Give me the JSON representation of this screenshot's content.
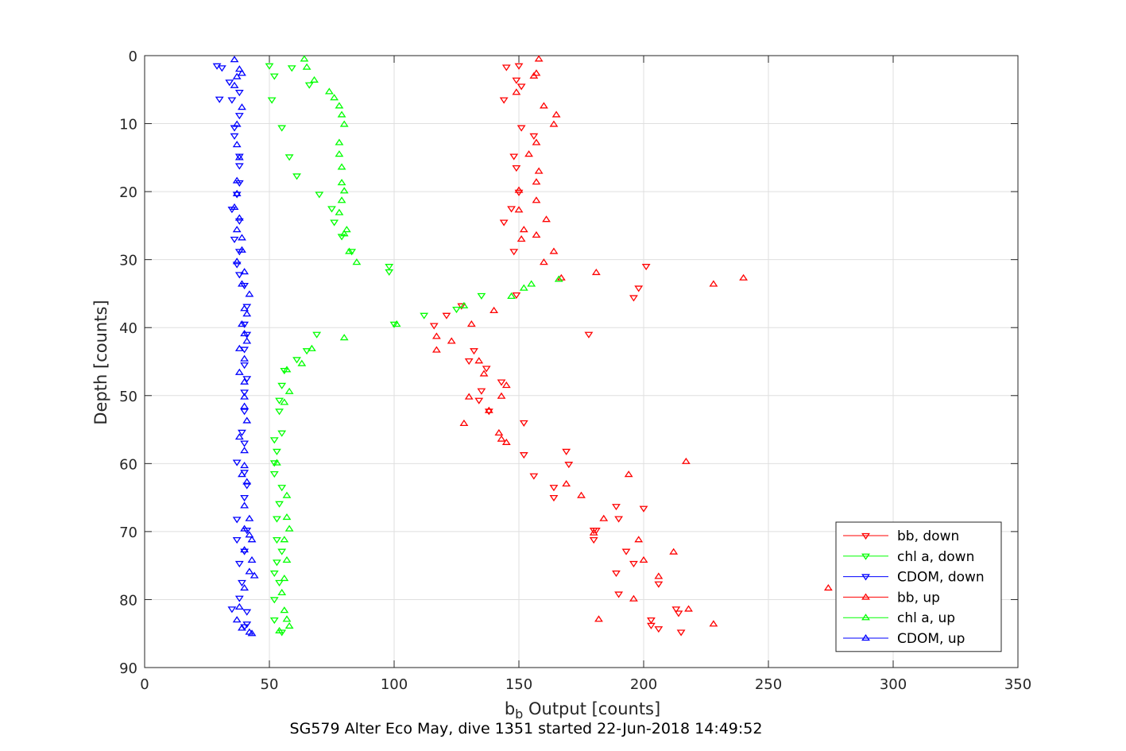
{
  "chart_data": {
    "type": "scatter",
    "title": "SG579 Alter Eco May, dive 1351 started 22-Jun-2018 14:49:52",
    "xlabel": "b",
    "xlabel_sub": "b",
    "xlabel_rest": " Output [counts]",
    "ylabel": "Depth [counts]",
    "xlim": [
      0,
      350
    ],
    "ylim": [
      0,
      90
    ],
    "y_reversed": true,
    "grid": true,
    "legend_position": "bottom-right",
    "xticks": [
      0,
      50,
      100,
      150,
      200,
      250,
      300,
      350
    ],
    "yticks": [
      0,
      10,
      20,
      30,
      40,
      50,
      60,
      70,
      80,
      90
    ],
    "series": [
      {
        "name": "bb, down",
        "color": "#ff0000",
        "marker": "triangle-down",
        "points": [
          [
            145,
            1.7
          ],
          [
            150,
            1.5
          ],
          [
            149,
            3.6
          ],
          [
            151,
            4.5
          ],
          [
            144,
            6.5
          ],
          [
            151,
            10.6
          ],
          [
            156,
            11.8
          ],
          [
            148,
            14.8
          ],
          [
            149,
            16.5
          ],
          [
            150,
            20.1
          ],
          [
            147,
            22.5
          ],
          [
            144,
            24.5
          ],
          [
            148,
            28.8
          ],
          [
            201,
            31.0
          ],
          [
            198,
            34.2
          ],
          [
            196,
            35.6
          ],
          [
            149,
            35.2
          ],
          [
            127,
            36.8
          ],
          [
            121,
            38.2
          ],
          [
            116,
            39.7
          ],
          [
            178,
            41.0
          ],
          [
            132,
            43.4
          ],
          [
            130,
            44.9
          ],
          [
            137,
            46.0
          ],
          [
            143,
            48.0
          ],
          [
            135,
            49.3
          ],
          [
            134,
            50.7
          ],
          [
            138,
            52.3
          ],
          [
            152,
            54.0
          ],
          [
            152,
            58.7
          ],
          [
            169,
            58.2
          ],
          [
            170,
            60.1
          ],
          [
            156,
            61.8
          ],
          [
            164,
            63.5
          ],
          [
            164,
            65.0
          ],
          [
            189,
            66.3
          ],
          [
            200,
            66.6
          ],
          [
            190,
            68.1
          ],
          [
            180,
            69.8
          ],
          [
            181,
            69.8
          ],
          [
            180,
            71.2
          ],
          [
            193,
            72.9
          ],
          [
            196,
            74.7
          ],
          [
            189,
            76.1
          ],
          [
            206,
            77.7
          ],
          [
            190,
            79.2
          ],
          [
            213,
            81.4
          ],
          [
            203,
            83.0
          ],
          [
            214,
            82.0
          ],
          [
            203,
            83.8
          ],
          [
            206,
            84.3
          ],
          [
            215,
            84.8
          ]
        ]
      },
      {
        "name": "chl a, down",
        "color": "#00ff00",
        "marker": "triangle-down",
        "points": [
          [
            50,
            1.5
          ],
          [
            59,
            1.8
          ],
          [
            52,
            3.0
          ],
          [
            66,
            4.3
          ],
          [
            51,
            6.5
          ],
          [
            55,
            10.6
          ],
          [
            58,
            14.9
          ],
          [
            61,
            17.7
          ],
          [
            70,
            20.4
          ],
          [
            75,
            22.5
          ],
          [
            76,
            24.5
          ],
          [
            79,
            26.6
          ],
          [
            83,
            28.8
          ],
          [
            98,
            31.0
          ],
          [
            98,
            31.8
          ],
          [
            135,
            35.3
          ],
          [
            125,
            37.3
          ],
          [
            112,
            38.2
          ],
          [
            100,
            39.5
          ],
          [
            69,
            41.0
          ],
          [
            65,
            43.4
          ],
          [
            61,
            44.7
          ],
          [
            56,
            46.3
          ],
          [
            55,
            48.5
          ],
          [
            54,
            50.7
          ],
          [
            54,
            52.3
          ],
          [
            55,
            55.5
          ],
          [
            52,
            56.5
          ],
          [
            53,
            58.2
          ],
          [
            52,
            59.9
          ],
          [
            52,
            61.5
          ],
          [
            55,
            63.5
          ],
          [
            54,
            65.9
          ],
          [
            53,
            68.1
          ],
          [
            53,
            71.2
          ],
          [
            55,
            72.9
          ],
          [
            53,
            74.5
          ],
          [
            52,
            76.1
          ],
          [
            54,
            77.5
          ],
          [
            52,
            80.0
          ],
          [
            52,
            83.0
          ],
          [
            55,
            84.8
          ]
        ]
      },
      {
        "name": "CDOM, down",
        "color": "#0000ff",
        "marker": "triangle-down",
        "points": [
          [
            29,
            1.5
          ],
          [
            31,
            1.8
          ],
          [
            34,
            3.9
          ],
          [
            38,
            5.4
          ],
          [
            30,
            6.4
          ],
          [
            35,
            6.5
          ],
          [
            38,
            8.8
          ],
          [
            36,
            10.6
          ],
          [
            36,
            11.8
          ],
          [
            38,
            14.8
          ],
          [
            38,
            16.2
          ],
          [
            38,
            18.7
          ],
          [
            37,
            20.4
          ],
          [
            35,
            22.6
          ],
          [
            38,
            24.3
          ],
          [
            36,
            27.0
          ],
          [
            38,
            28.8
          ],
          [
            37,
            30.7
          ],
          [
            38,
            32.2
          ],
          [
            40,
            33.8
          ],
          [
            41,
            36.9
          ],
          [
            40,
            39.5
          ],
          [
            41,
            41.0
          ],
          [
            40,
            43.2
          ],
          [
            40,
            45.5
          ],
          [
            41,
            47.5
          ],
          [
            40,
            49.5
          ],
          [
            40,
            52.3
          ],
          [
            39,
            55.4
          ],
          [
            40,
            57.0
          ],
          [
            37,
            59.8
          ],
          [
            40,
            61.3
          ],
          [
            41,
            63.2
          ],
          [
            40,
            65.0
          ],
          [
            37,
            68.2
          ],
          [
            41,
            69.8
          ],
          [
            37,
            71.2
          ],
          [
            40,
            72.9
          ],
          [
            38,
            74.7
          ],
          [
            39,
            77.5
          ],
          [
            38,
            79.8
          ],
          [
            35,
            81.4
          ],
          [
            41,
            81.8
          ],
          [
            41,
            83.6
          ],
          [
            40,
            84.0
          ]
        ]
      },
      {
        "name": "bb, up",
        "color": "#ff0000",
        "marker": "triangle-up",
        "points": [
          [
            158,
            0.5
          ],
          [
            157,
            2.6
          ],
          [
            156,
            3.0
          ],
          [
            149,
            5.4
          ],
          [
            160,
            7.4
          ],
          [
            165,
            8.7
          ],
          [
            164,
            10.1
          ],
          [
            157,
            12.8
          ],
          [
            154,
            14.5
          ],
          [
            158,
            17.0
          ],
          [
            157,
            18.6
          ],
          [
            150,
            19.8
          ],
          [
            150,
            22.7
          ],
          [
            157,
            21.3
          ],
          [
            161,
            24.1
          ],
          [
            152,
            25.6
          ],
          [
            151,
            27.0
          ],
          [
            157,
            26.4
          ],
          [
            164,
            28.8
          ],
          [
            160,
            30.4
          ],
          [
            167,
            32.7
          ],
          [
            181,
            31.9
          ],
          [
            228,
            33.6
          ],
          [
            240,
            32.7
          ],
          [
            140,
            37.5
          ],
          [
            131,
            39.5
          ],
          [
            117,
            41.3
          ],
          [
            123,
            42.0
          ],
          [
            117,
            43.3
          ],
          [
            136,
            46.8
          ],
          [
            134,
            44.9
          ],
          [
            130,
            50.2
          ],
          [
            138,
            52.2
          ],
          [
            143,
            50.1
          ],
          [
            145,
            48.5
          ],
          [
            128,
            54.1
          ],
          [
            142,
            55.5
          ],
          [
            143,
            56.4
          ],
          [
            145,
            56.9
          ],
          [
            217,
            59.7
          ],
          [
            194,
            61.6
          ],
          [
            169,
            63.0
          ],
          [
            175,
            64.7
          ],
          [
            184,
            68.1
          ],
          [
            180,
            70.2
          ],
          [
            198,
            71.2
          ],
          [
            212,
            73.0
          ],
          [
            200,
            74.2
          ],
          [
            206,
            76.6
          ],
          [
            274,
            78.3
          ],
          [
            196,
            79.9
          ],
          [
            218,
            81.4
          ],
          [
            182,
            82.9
          ],
          [
            228,
            83.6
          ]
        ]
      },
      {
        "name": "chl a, up",
        "color": "#00ff00",
        "marker": "triangle-up",
        "points": [
          [
            64,
            0.5
          ],
          [
            65,
            1.7
          ],
          [
            68,
            3.6
          ],
          [
            74,
            5.3
          ],
          [
            76,
            6.2
          ],
          [
            78,
            7.4
          ],
          [
            79,
            8.7
          ],
          [
            80,
            10.1
          ],
          [
            78,
            12.8
          ],
          [
            78,
            14.5
          ],
          [
            79,
            16.4
          ],
          [
            79,
            18.7
          ],
          [
            80,
            19.9
          ],
          [
            79,
            21.3
          ],
          [
            78,
            23.1
          ],
          [
            81,
            25.6
          ],
          [
            80,
            26.2
          ],
          [
            82,
            28.8
          ],
          [
            85,
            30.4
          ],
          [
            166,
            32.9
          ],
          [
            155,
            33.6
          ],
          [
            152,
            34.2
          ],
          [
            147,
            35.4
          ],
          [
            128,
            36.8
          ],
          [
            101,
            39.5
          ],
          [
            80,
            41.5
          ],
          [
            67,
            43.1
          ],
          [
            63,
            45.3
          ],
          [
            57,
            46.2
          ],
          [
            58,
            49.4
          ],
          [
            56,
            51.0
          ],
          [
            53,
            59.9
          ],
          [
            57,
            64.7
          ],
          [
            57,
            67.9
          ],
          [
            58,
            69.6
          ],
          [
            56,
            71.2
          ],
          [
            57,
            74.2
          ],
          [
            56,
            76.9
          ],
          [
            55,
            79.0
          ],
          [
            56,
            81.6
          ],
          [
            57,
            82.9
          ],
          [
            58,
            83.9
          ],
          [
            54,
            84.6
          ]
        ]
      },
      {
        "name": "CDOM, up",
        "color": "#0000ff",
        "marker": "triangle-up",
        "points": [
          [
            36,
            0.6
          ],
          [
            38,
            2.0
          ],
          [
            37,
            3.1
          ],
          [
            39,
            2.6
          ],
          [
            36,
            4.4
          ],
          [
            39,
            7.6
          ],
          [
            37,
            10.1
          ],
          [
            37,
            13.1
          ],
          [
            38,
            15.0
          ],
          [
            37,
            18.4
          ],
          [
            37,
            20.3
          ],
          [
            36,
            22.3
          ],
          [
            38,
            23.9
          ],
          [
            37,
            25.6
          ],
          [
            39,
            26.8
          ],
          [
            39,
            28.6
          ],
          [
            37,
            30.3
          ],
          [
            40,
            31.8
          ],
          [
            39,
            33.6
          ],
          [
            42,
            35.1
          ],
          [
            40,
            37.2
          ],
          [
            41,
            38.0
          ],
          [
            39,
            39.5
          ],
          [
            40,
            40.9
          ],
          [
            41,
            42.0
          ],
          [
            38,
            43.1
          ],
          [
            40,
            44.6
          ],
          [
            38,
            46.6
          ],
          [
            40,
            48.0
          ],
          [
            40,
            50.2
          ],
          [
            40,
            51.6
          ],
          [
            41,
            53.7
          ],
          [
            38,
            56.1
          ],
          [
            40,
            58.1
          ],
          [
            40,
            60.3
          ],
          [
            39,
            61.6
          ],
          [
            41,
            62.7
          ],
          [
            40,
            66.2
          ],
          [
            42,
            68.1
          ],
          [
            40,
            69.6
          ],
          [
            42,
            70.5
          ],
          [
            43,
            71.2
          ],
          [
            40,
            72.7
          ],
          [
            43,
            74.2
          ],
          [
            42,
            75.9
          ],
          [
            44,
            76.5
          ],
          [
            40,
            78.3
          ],
          [
            38,
            81.1
          ],
          [
            37,
            83.0
          ],
          [
            39,
            84.2
          ],
          [
            42,
            84.8
          ],
          [
            43,
            85.0
          ]
        ]
      }
    ]
  }
}
